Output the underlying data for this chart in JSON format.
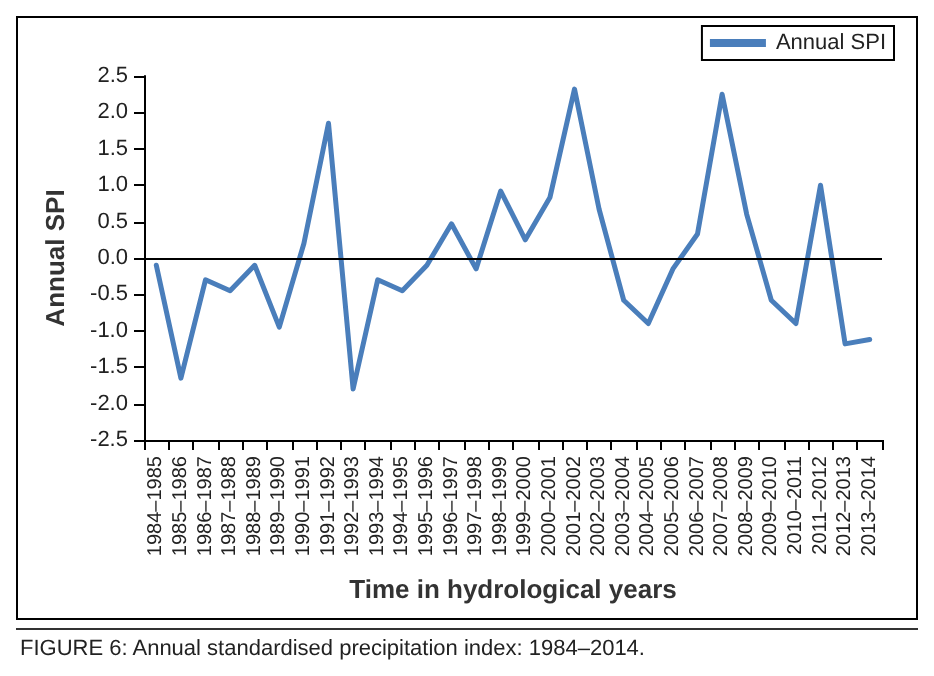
{
  "chart_data": {
    "type": "line",
    "xlabel": "Time in hydrological years",
    "ylabel": "Annual SPI",
    "categories": [
      "1984–1985",
      "1985–1986",
      "1986–1987",
      "1987–1988",
      "1988–1989",
      "1989–1990",
      "1990–1991",
      "1991–1992",
      "1992–1993",
      "1993–1994",
      "1994–1995",
      "1995–1996",
      "1996–1997",
      "1997–1998",
      "1998–1999",
      "1999–2000",
      "2000–2001",
      "2001–2002",
      "2002–2003",
      "2003–2004",
      "2004–2005",
      "2005–2006",
      "2006–2007",
      "2007–2008",
      "2008–2009",
      "2009–2010",
      "2010–2011",
      "2011–2012",
      "2012–2013",
      "2013–2014"
    ],
    "series": [
      {
        "name": "Annual SPI",
        "color": "#4a7ebb",
        "values": [
          -0.1,
          -1.65,
          -0.3,
          -0.45,
          -0.1,
          -0.95,
          0.2,
          1.85,
          -1.8,
          -0.3,
          -0.45,
          -0.1,
          0.47,
          -0.15,
          0.92,
          0.25,
          0.83,
          2.32,
          0.67,
          -0.58,
          -0.9,
          -0.15,
          0.33,
          2.25,
          0.6,
          -0.58,
          -0.9,
          1.0,
          -1.18,
          -1.12
        ]
      }
    ],
    "ylim": [
      -2.5,
      2.5
    ],
    "yticks": [
      -2.5,
      {
        "value": -2,
        "label": "-2.0"
      },
      -1.5,
      {
        "value": -1,
        "label": "-1.0"
      },
      -0.5,
      {
        "value": 0,
        "label": "0.0"
      },
      0.5,
      {
        "value": 1,
        "label": "1.0"
      },
      1.5,
      {
        "value": 2,
        "label": "2.0"
      },
      2.5
    ],
    "ref_lines": [
      {
        "axis": "y",
        "value": 0,
        "color": "#000000"
      }
    ],
    "grid": false,
    "legend": "top right",
    "marker": "none",
    "line_style": "solid",
    "annotations": [
      "FIGURE 6: Annual standardised precipitation index: 1984–2014."
    ]
  }
}
